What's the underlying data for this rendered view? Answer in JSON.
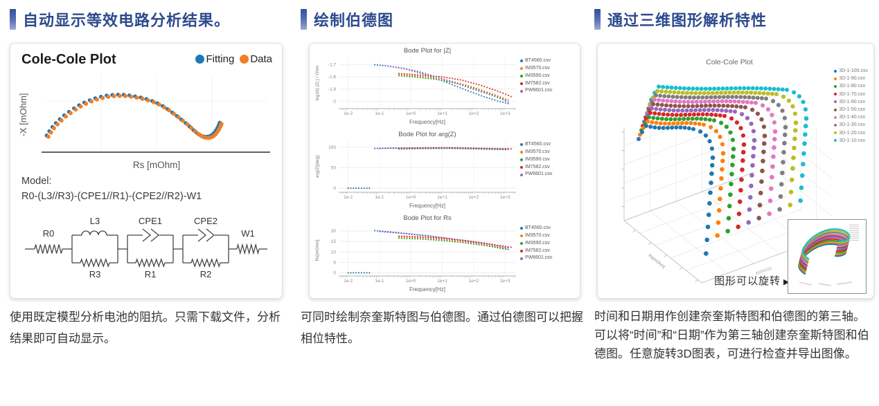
{
  "theme": {
    "heading_text": "#2d4a8c",
    "heading_bar_top": "#30509e",
    "heading_bar_bottom": "#9dabd2",
    "caption_text": "#333333"
  },
  "columns": [
    {
      "heading": "自动显示等效电路分析结果。",
      "caption": [
        "使用既定模型分析电池的阻抗。只需下载文件，分析结果即可自动显示。"
      ]
    },
    {
      "heading": "绘制伯德图",
      "caption": [
        "可同时绘制奈奎斯特图与伯德图。通过伯德图可以把握相位特性。"
      ]
    },
    {
      "heading": "通过三维图形解析特性",
      "caption": [
        "时间和日期用作创建奈奎斯特图和伯德图的第三轴。",
        "可以将“时间”和“日期”作为第三轴创建奈奎斯特图和伯德图。任意旋转3D图表，可进行检查并导出图像。"
      ]
    }
  ],
  "circuit": {
    "model_label": "Model:",
    "formula": "R0-(L3//R3)-(CPE1//R1)-(CPE2//R2)-W1",
    "labels": {
      "r0": "R0",
      "l3": "L3",
      "r3": "R3",
      "cpe1": "CPE1",
      "r1": "R1",
      "cpe2": "CPE2",
      "r2": "R2",
      "w1": "W1"
    }
  },
  "rotate_hint": {
    "label": "图形可以旋转",
    "arrow": "▶"
  },
  "palette": [
    "#1f77b4",
    "#ff7f0e",
    "#2ca02c",
    "#d62728",
    "#9467bd",
    "#8c564b",
    "#e377c2",
    "#7f7f7f",
    "#bcbd22",
    "#17becf"
  ],
  "chart_data": [
    {
      "id": "cole",
      "type": "scatter",
      "title": "Cole-Cole Plot",
      "xlabel": "Rs [mOhm]",
      "ylabel": "-X [mOhm]",
      "legend": [
        {
          "name": "Fitting",
          "color": "#1f77b4"
        },
        {
          "name": "Data",
          "color": "#f07e26"
        }
      ],
      "grid": true,
      "axis_ticks": "unlabeled",
      "points": [
        [
          0.01,
          0.205
        ],
        [
          0.022,
          0.26
        ],
        [
          0.036,
          0.315
        ],
        [
          0.052,
          0.365
        ],
        [
          0.07,
          0.415
        ],
        [
          0.09,
          0.465
        ],
        [
          0.112,
          0.51
        ],
        [
          0.135,
          0.555
        ],
        [
          0.158,
          0.595
        ],
        [
          0.182,
          0.63
        ],
        [
          0.207,
          0.66
        ],
        [
          0.232,
          0.685
        ],
        [
          0.258,
          0.705
        ],
        [
          0.284,
          0.72
        ],
        [
          0.31,
          0.728
        ],
        [
          0.336,
          0.732
        ],
        [
          0.362,
          0.73
        ],
        [
          0.388,
          0.722
        ],
        [
          0.414,
          0.71
        ],
        [
          0.44,
          0.695
        ],
        [
          0.466,
          0.675
        ],
        [
          0.492,
          0.65
        ],
        [
          0.516,
          0.62
        ],
        [
          0.54,
          0.585
        ],
        [
          0.562,
          0.545
        ],
        [
          0.584,
          0.5
        ],
        [
          0.605,
          0.455
        ],
        [
          0.625,
          0.41
        ],
        [
          0.645,
          0.365
        ],
        [
          0.663,
          0.32
        ],
        [
          0.68,
          0.275
        ],
        [
          0.695,
          0.24
        ],
        [
          0.708,
          0.215
        ],
        [
          0.72,
          0.198
        ],
        [
          0.732,
          0.19
        ],
        [
          0.744,
          0.19
        ],
        [
          0.756,
          0.198
        ],
        [
          0.766,
          0.215
        ],
        [
          0.775,
          0.24
        ],
        [
          0.783,
          0.27
        ],
        [
          0.79,
          0.3
        ],
        [
          0.795,
          0.33
        ],
        [
          0.799,
          0.355
        ],
        [
          0.801,
          0.37
        ]
      ]
    },
    {
      "id": "bode_z",
      "type": "scatter",
      "title": "Bode Plot for |Z|",
      "ylabel": "log10( |Z| ) / Ohm",
      "xlabel": "Frequency[Hz]",
      "xlim": [
        -2.3,
        3.35
      ],
      "ylim": [
        -2.06,
        -1.64
      ],
      "yticks": [
        -1.7,
        -1.8,
        -1.9,
        -2.0
      ],
      "ytick_labels": [
        "-1.7",
        "-1.8",
        "-1.9",
        "-2"
      ],
      "xtick_vals": [
        -2,
        -1,
        0,
        1,
        2,
        3
      ],
      "xticks": [
        "1e-2",
        "1e-1",
        "1e+0",
        "1e+1",
        "1e+2",
        "1e+3"
      ],
      "series": [
        {
          "name": "BT4560.csv",
          "color": "#1f77b4",
          "segs": [
            [
              [
                -1.15,
                -1.7
              ],
              [
                -0.7,
                -1.712
              ],
              [
                -0.2,
                -1.733
              ],
              [
                0.3,
                -1.768
              ],
              [
                0.8,
                -1.812
              ],
              [
                1.3,
                -1.862
              ],
              [
                1.8,
                -1.912
              ],
              [
                2.3,
                -1.96
              ],
              [
                2.8,
                -2.0
              ],
              [
                3.15,
                -2.022
              ]
            ]
          ]
        },
        {
          "name": "IM3570.csv",
          "color": "#ff7f0e",
          "segs": [
            [
              [
                -0.38,
                -1.78
              ],
              [
                0.2,
                -1.793
              ],
              [
                0.8,
                -1.812
              ],
              [
                1.4,
                -1.842
              ],
              [
                2.0,
                -1.886
              ],
              [
                2.6,
                -1.94
              ],
              [
                3.15,
                -1.993
              ]
            ]
          ]
        },
        {
          "name": "IM3590.csv",
          "color": "#2ca02c",
          "segs": [
            [
              [
                -0.38,
                -1.79
              ],
              [
                0.2,
                -1.802
              ],
              [
                0.8,
                -1.82
              ],
              [
                1.4,
                -1.85
              ],
              [
                2.0,
                -1.893
              ],
              [
                2.6,
                -1.947
              ],
              [
                3.1,
                -1.998
              ]
            ]
          ]
        },
        {
          "name": "IM7582.csv",
          "color": "#d62728",
          "segs": [
            [
              [
                -0.38,
                -1.772
              ],
              [
                0.3,
                -1.785
              ],
              [
                1.0,
                -1.8
              ],
              [
                1.6,
                -1.825
              ],
              [
                2.2,
                -1.866
              ],
              [
                2.8,
                -1.92
              ],
              [
                3.2,
                -1.962
              ]
            ]
          ]
        },
        {
          "name": "PW6601.csv",
          "color": "#9467bd",
          "segs": [
            [
              [
                -0.9,
                -1.706
              ],
              [
                -0.3,
                -1.726
              ],
              [
                0.3,
                -1.76
              ],
              [
                0.9,
                -1.806
              ],
              [
                1.5,
                -1.856
              ],
              [
                2.1,
                -1.91
              ],
              [
                2.7,
                -1.962
              ],
              [
                3.15,
                -2.012
              ]
            ]
          ]
        }
      ]
    },
    {
      "id": "bode_arg",
      "type": "scatter",
      "title": "Bode Plot for arg(Z)",
      "ylabel": "arg(Z)[deg]",
      "xlabel": "Frequency[Hz]",
      "xlim": [
        -2.3,
        3.35
      ],
      "ylim": [
        -10,
        115
      ],
      "yticks": [
        100,
        50,
        0
      ],
      "ytick_labels": [
        "100",
        "50",
        "0"
      ],
      "xtick_vals": [
        -2,
        -1,
        0,
        1,
        2,
        3
      ],
      "xticks": [
        "1e-2",
        "1e-1",
        "1e+0",
        "1e+1",
        "1e+2",
        "1e+3"
      ],
      "series": [
        {
          "name": "BT4560.csv",
          "color": "#1f77b4",
          "segs": [
            [
              [
                -2.0,
                0
              ],
              [
                -1.75,
                0
              ],
              [
                -1.5,
                0
              ],
              [
                -1.3,
                0
              ]
            ],
            [
              [
                -1.15,
                97
              ],
              [
                -0.6,
                98
              ],
              [
                0,
                97.5
              ],
              [
                0.8,
                98
              ],
              [
                1.6,
                97
              ],
              [
                2.4,
                96
              ],
              [
                3.1,
                95
              ]
            ]
          ]
        },
        {
          "name": "IM3570.csv",
          "color": "#ff7f0e",
          "segs": [
            [
              [
                -0.38,
                96.5
              ],
              [
                0.4,
                97.5
              ],
              [
                1.2,
                98
              ],
              [
                2.0,
                97
              ],
              [
                2.8,
                95.5
              ],
              [
                3.15,
                95
              ]
            ]
          ]
        },
        {
          "name": "IM3590.csv",
          "color": "#2ca02c",
          "segs": [
            [
              [
                -0.38,
                95.5
              ],
              [
                0.4,
                96.5
              ],
              [
                1.2,
                97
              ],
              [
                2.0,
                96
              ],
              [
                2.8,
                94.5
              ],
              [
                3.1,
                94
              ]
            ]
          ]
        },
        {
          "name": "IM7582.csv",
          "color": "#d62728",
          "segs": [
            [
              [
                -0.38,
                97.5
              ],
              [
                0.4,
                98.5
              ],
              [
                1.2,
                99
              ],
              [
                2.0,
                98
              ],
              [
                2.8,
                96.5
              ],
              [
                3.2,
                96
              ]
            ]
          ]
        },
        {
          "name": "PW6601.csv",
          "color": "#9467bd",
          "segs": [
            [
              [
                -1.0,
                97
              ],
              [
                0,
                98
              ],
              [
                1,
                98.5
              ],
              [
                2,
                97
              ],
              [
                3.15,
                95.5
              ]
            ]
          ]
        }
      ]
    },
    {
      "id": "bode_rs",
      "type": "scatter",
      "title": "Bode Plot for Rs",
      "ylabel": "Rs[mOhm]",
      "xlabel": "Frequency[Hz]",
      "xlim": [
        -2.3,
        3.35
      ],
      "ylim": [
        -1.5,
        23
      ],
      "yticks": [
        20,
        15,
        10,
        5,
        0
      ],
      "ytick_labels": [
        "20",
        "15",
        "10",
        "5",
        "0"
      ],
      "xtick_vals": [
        -2,
        -1,
        0,
        1,
        2,
        3
      ],
      "xticks": [
        "1e-2",
        "1e-1",
        "1e+0",
        "1e+1",
        "1e+2",
        "1e+3"
      ],
      "series": [
        {
          "name": "BT4560.csv",
          "color": "#1f77b4",
          "segs": [
            [
              [
                -2.0,
                0
              ],
              [
                -1.75,
                0
              ],
              [
                -1.5,
                0
              ],
              [
                -1.3,
                0
              ]
            ],
            [
              [
                -1.15,
                20.2
              ],
              [
                -0.6,
                19.5
              ],
              [
                0,
                18.6
              ],
              [
                0.6,
                17.6
              ],
              [
                1.2,
                16.4
              ],
              [
                1.8,
                15.0
              ],
              [
                2.4,
                13.3
              ],
              [
                3.1,
                11.2
              ]
            ]
          ]
        },
        {
          "name": "IM3570.csv",
          "color": "#ff7f0e",
          "segs": [
            [
              [
                -0.38,
                17.2
              ],
              [
                0.3,
                16.8
              ],
              [
                1.0,
                16.0
              ],
              [
                1.7,
                14.9
              ],
              [
                2.4,
                13.4
              ],
              [
                3.1,
                11.6
              ]
            ]
          ]
        },
        {
          "name": "IM3590.csv",
          "color": "#2ca02c",
          "segs": [
            [
              [
                -0.38,
                16.6
              ],
              [
                0.3,
                16.2
              ],
              [
                1.0,
                15.5
              ],
              [
                1.7,
                14.4
              ],
              [
                2.4,
                13.0
              ],
              [
                3.05,
                11.2
              ]
            ]
          ]
        },
        {
          "name": "IM7582.csv",
          "color": "#d62728",
          "segs": [
            [
              [
                -0.38,
                17.6
              ],
              [
                0.3,
                17.2
              ],
              [
                1.0,
                16.5
              ],
              [
                1.7,
                15.5
              ],
              [
                2.4,
                14.1
              ],
              [
                3.2,
                12.2
              ]
            ]
          ]
        },
        {
          "name": "PW6601.csv",
          "color": "#9467bd",
          "segs": [
            [
              [
                -1.0,
                19.8
              ],
              [
                -0.3,
                18.9
              ],
              [
                0.4,
                17.9
              ],
              [
                1.1,
                16.7
              ],
              [
                1.8,
                15.3
              ],
              [
                2.5,
                13.7
              ],
              [
                3.15,
                11.8
              ]
            ]
          ]
        }
      ]
    },
    {
      "id": "cole3d",
      "type": "scatter3d",
      "title": "Cole-Cole Plot",
      "axis_labels": {
        "x": "Rs[mOhm]",
        "y": "Date",
        "z": "-X[mOhm]"
      },
      "y_ticks": [
        "2020/1/3",
        "2020/1/13",
        "2020/1/23",
        "2020/2/2"
      ],
      "series": [
        {
          "name": "3D-1-100.csv",
          "color": "#1f77b4"
        },
        {
          "name": "3D-1-90.csv",
          "color": "#ff7f0e"
        },
        {
          "name": "3D-1-80.csv",
          "color": "#2ca02c"
        },
        {
          "name": "3D-1-70.csv",
          "color": "#d62728"
        },
        {
          "name": "3D-1-60.csv",
          "color": "#9467bd"
        },
        {
          "name": "3D-1-50.csv",
          "color": "#8c564b"
        },
        {
          "name": "3D-1-40.csv",
          "color": "#e377c2"
        },
        {
          "name": "3D-1-30.csv",
          "color": "#7f7f7f"
        },
        {
          "name": "3D-1-20.csv",
          "color": "#bcbd22"
        },
        {
          "name": "3D-1-10.csv",
          "color": "#17becf"
        }
      ]
    }
  ]
}
